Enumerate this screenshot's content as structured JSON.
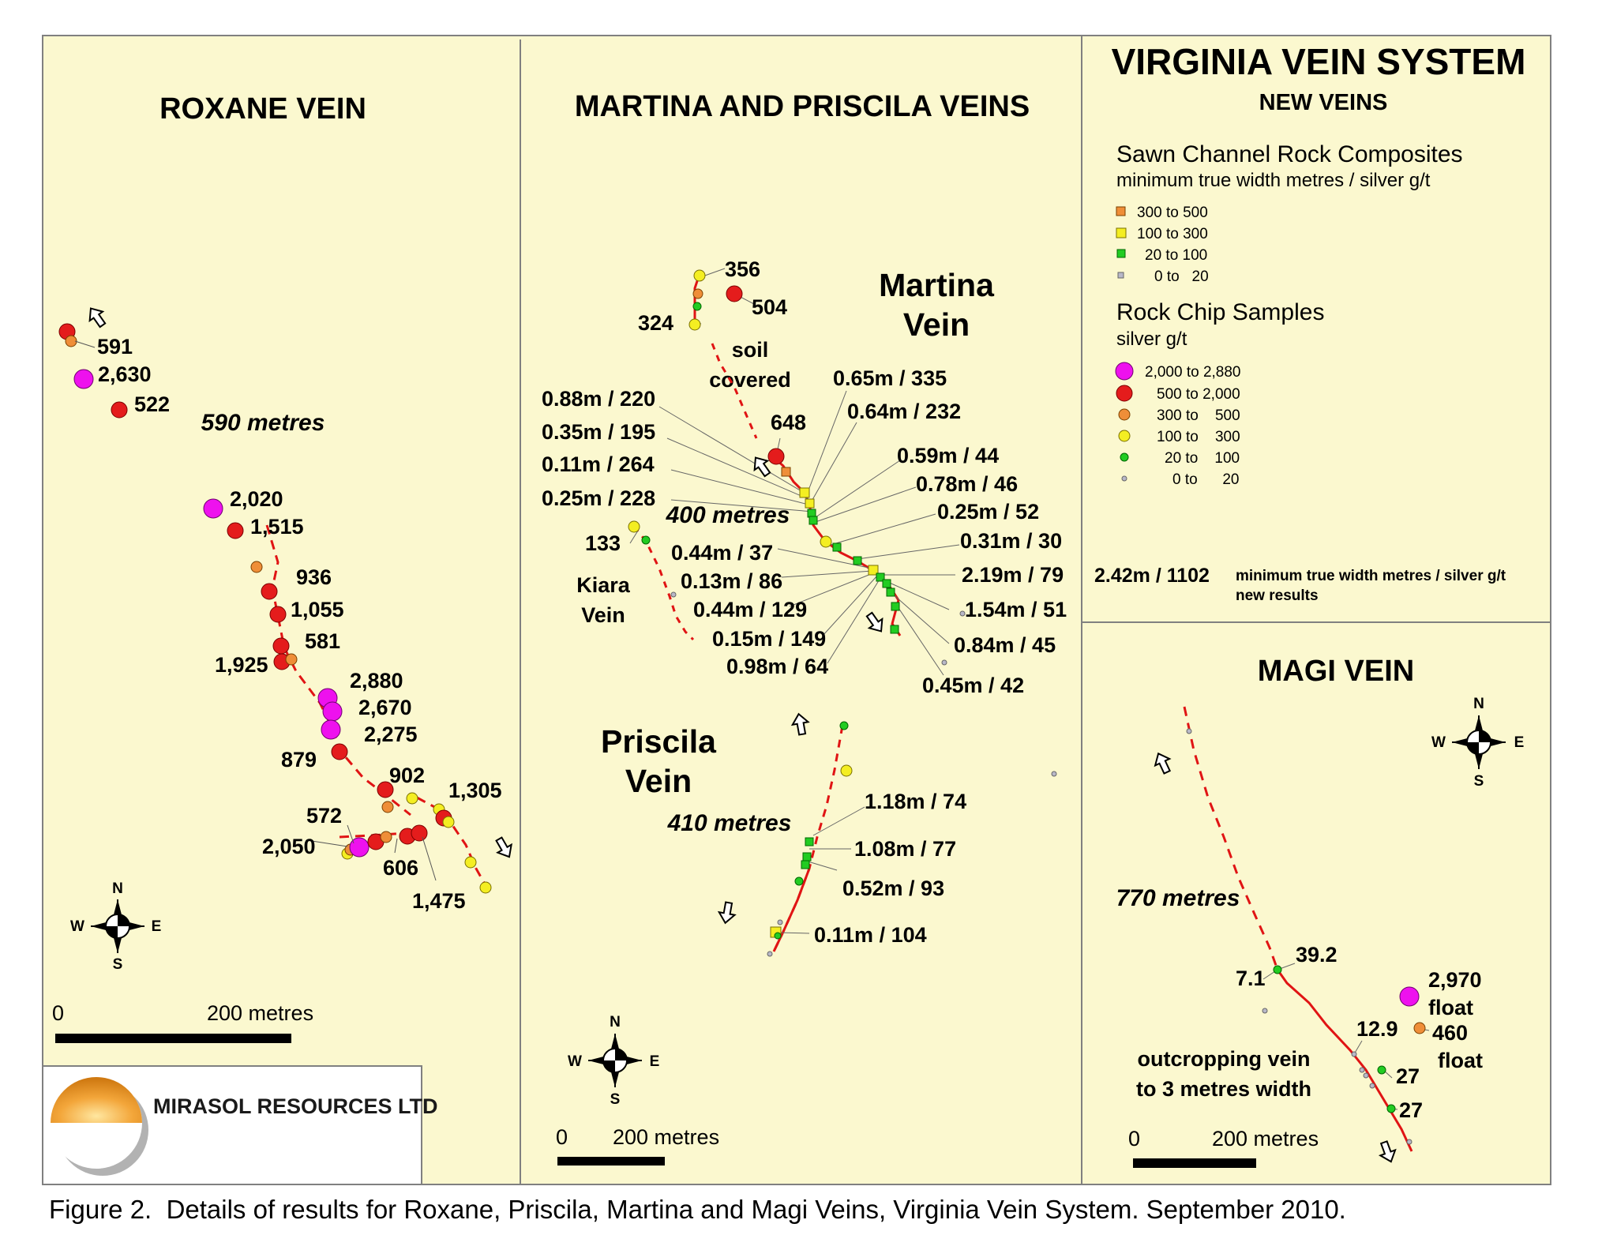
{
  "panels": {
    "roxane": {
      "title": "ROXANE VEIN",
      "length": "590 metres",
      "scale_zero": "0",
      "scale_label": "200 metres"
    },
    "martina_priscila": {
      "title": "MARTINA AND PRISCILA VEINS",
      "martina_name_1": "Martina",
      "martina_name_2": "Vein",
      "martina_length": "400 metres",
      "priscila_name_1": "Priscila",
      "priscila_name_2": "Vein",
      "priscila_length": "410 metres",
      "kiara_name_1": "Kiara",
      "kiara_name_2": "Vein",
      "soil_1": "soil",
      "soil_2": "covered",
      "scale_zero": "0",
      "scale_label": "200 metres"
    },
    "virginia": {
      "title": "VIRGINIA VEIN SYSTEM",
      "subtitle": "NEW VEINS",
      "channel_heading": "Sawn Channel Rock Composites",
      "channel_sub": "minimum true width metres / silver g/t",
      "channel_classes": [
        "300 to 500",
        "100 to 300",
        "20 to 100",
        "0 to   20"
      ],
      "chip_heading": "Rock Chip Samples",
      "chip_sub": "silver g/t",
      "chip_classes": [
        "2,000 to 2,880",
        "500 to 2,000",
        "300 to    500",
        "100 to    300",
        "20 to    100",
        "0 to      20"
      ],
      "example_value": "2.42m / 1102",
      "example_note_1": "minimum true width metres / silver g/t",
      "example_note_2": "new results"
    },
    "magi": {
      "title": "MAGI VEIN",
      "length": "770 metres",
      "outcrop_1": "outcropping vein",
      "outcrop_2": "to 3 metres width",
      "scale_zero": "0",
      "scale_label": "200 metres"
    }
  },
  "sample_labels": {
    "roxane": [
      "591",
      "2,630",
      "522",
      "2,020",
      "1,515",
      "936",
      "1,055",
      "581",
      "1,925",
      "2,880",
      "2,670",
      "2,275",
      "879",
      "902",
      "1,305",
      "572",
      "2,050",
      "606",
      "1,475"
    ],
    "martina": [
      "356",
      "504",
      "324",
      "648",
      "0.65m / 335",
      "0.64m / 232",
      "0.88m / 220",
      "0.35m / 195",
      "0.11m / 264",
      "0.25m / 228",
      "0.59m / 44",
      "0.78m / 46",
      "0.25m / 52",
      "0.31m / 30",
      "2.19m / 79",
      "1.54m / 51",
      "0.84m / 45",
      "0.45m / 42",
      "0.44m / 37",
      "0.13m / 86",
      "0.44m / 129",
      "0.15m / 149",
      "0.98m / 64"
    ],
    "kiara": [
      "133"
    ],
    "priscila": [
      "1.18m / 74",
      "1.08m / 77",
      "0.52m / 93",
      "0.11m / 104"
    ],
    "magi": [
      "39.2",
      "7.1",
      "12.9",
      "27",
      "27",
      "2,970",
      "float",
      "460",
      "float"
    ]
  },
  "compass": {
    "n": "N",
    "s": "S",
    "e": "E",
    "w": "W"
  },
  "logo_text": "MIRASOL RESOURCES LTD",
  "caption": "Figure 2.  Details of results for Roxane, Priscila, Martina and Magi Veins, Virginia Vein System. September 2010.",
  "colors": {
    "background": "#fbf8cf",
    "vein_line": "#e01414",
    "class_2000_2880": "#ee11ee",
    "class_500_2000": "#e41c1c",
    "class_300_500": "#ef8e38",
    "class_100_300": "#f4ee22",
    "class_20_100": "#22cc22",
    "class_0_20": "#b8b8c8"
  },
  "icons": [
    "north-arrow-compass-icon",
    "direction-arrow-icon",
    "mirasol-sun-logo-icon"
  ]
}
